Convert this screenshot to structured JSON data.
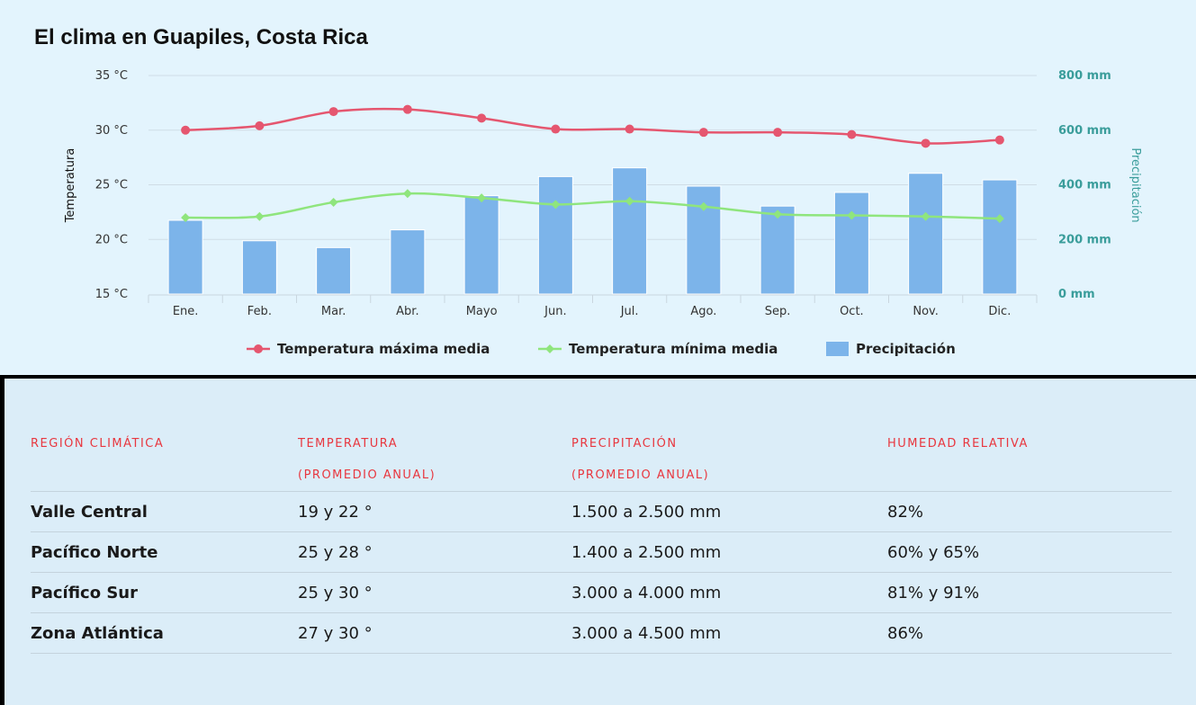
{
  "title": "El clima en Guapiles, Costa Rica",
  "chart_data": {
    "type": "bar",
    "title": "El clima en Guapiles, Costa Rica",
    "categories": [
      "Ene.",
      "Feb.",
      "Mar.",
      "Abr.",
      "Mayo",
      "Jun.",
      "Jul.",
      "Ago.",
      "Sep.",
      "Oct.",
      "Nov.",
      "Dic."
    ],
    "y_left": {
      "label": "Temperatura",
      "min": 15,
      "max": 35,
      "ticks": [
        35,
        30,
        25,
        20,
        15
      ],
      "tick_labels": [
        "35 °C",
        "30 °C",
        "25 °C",
        "20 °C",
        "15 °C"
      ]
    },
    "y_right": {
      "label": "Precipitación",
      "min": 0,
      "max": 800,
      "ticks": [
        800,
        600,
        400,
        200,
        0
      ],
      "tick_labels": [
        "800 mm",
        "600 mm",
        "400 mm",
        "200 mm",
        "0 mm"
      ]
    },
    "series": [
      {
        "name": "Temperatura máxima media",
        "type": "line",
        "axis": "left",
        "color": "#e5566f",
        "values": [
          30.0,
          30.4,
          31.7,
          31.9,
          31.1,
          30.1,
          30.1,
          29.8,
          29.8,
          29.6,
          28.8,
          29.1
        ]
      },
      {
        "name": "Temperatura mínima media",
        "type": "line",
        "axis": "left",
        "color": "#8fe57d",
        "values": [
          22.0,
          22.1,
          23.4,
          24.2,
          23.8,
          23.2,
          23.5,
          23.0,
          22.3,
          22.2,
          22.1,
          21.9
        ]
      },
      {
        "name": "Precipitación",
        "type": "bar",
        "axis": "right",
        "color": "#7cb4ea",
        "values": [
          270,
          195,
          170,
          235,
          360,
          430,
          462,
          395,
          322,
          372,
          442,
          418
        ]
      }
    ],
    "grid": true,
    "legend": "bottom"
  },
  "table": {
    "headers": [
      {
        "line1": "REGIÓN CLIMÁTICA",
        "line2": ""
      },
      {
        "line1": "TEMPERATURA",
        "line2": "(PROMEDIO ANUAL)"
      },
      {
        "line1": "PRECIPITACIÓN",
        "line2": "(PROMEDIO ANUAL)"
      },
      {
        "line1": "HUMEDAD RELATIVA",
        "line2": ""
      }
    ],
    "rows": [
      [
        "Valle Central",
        "19 y 22 °",
        "1.500 a 2.500 mm",
        "82%"
      ],
      [
        "Pacífico Norte",
        "25 y 28 °",
        "1.400 a 2.500 mm",
        "60% y 65%"
      ],
      [
        "Pacífico Sur",
        "25 y 30 °",
        "3.000 a 4.000 mm",
        "81% y 91%"
      ],
      [
        "Zona Atlántica",
        "27 y 30 °",
        "3.000 a 4.500 mm",
        "86%"
      ]
    ]
  }
}
